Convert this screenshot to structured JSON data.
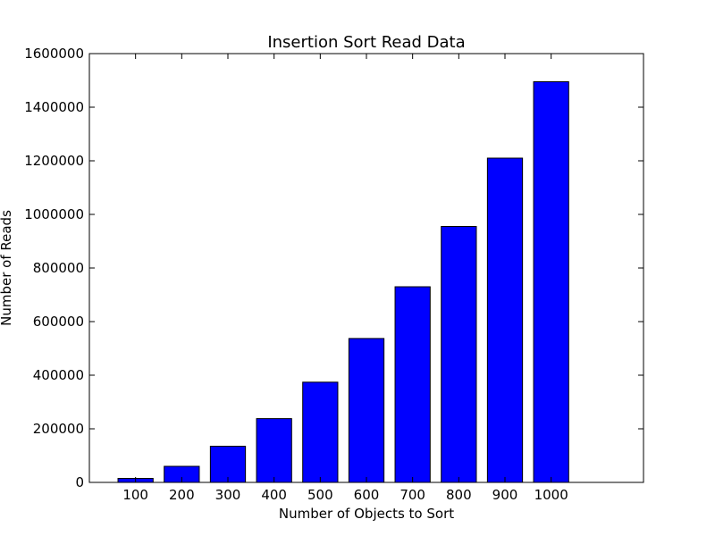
{
  "chart_data": {
    "type": "bar",
    "title": "Insertion Sort Read Data",
    "xlabel": "Number of Objects to Sort",
    "ylabel": "Number of Reads",
    "categories": [
      "100",
      "200",
      "300",
      "400",
      "500",
      "600",
      "700",
      "800",
      "900",
      "1000"
    ],
    "values": [
      15000,
      60000,
      135000,
      238000,
      374000,
      537000,
      730000,
      955000,
      1210000,
      1495000
    ],
    "ylim": [
      0,
      1600000
    ],
    "yticks": [
      "0",
      "200000",
      "400000",
      "600000",
      "800000",
      "1000000",
      "1200000",
      "1400000",
      "1600000"
    ],
    "bar_color": "#0000ff",
    "edge_color": "#000000",
    "grid": false,
    "legend": "none"
  }
}
